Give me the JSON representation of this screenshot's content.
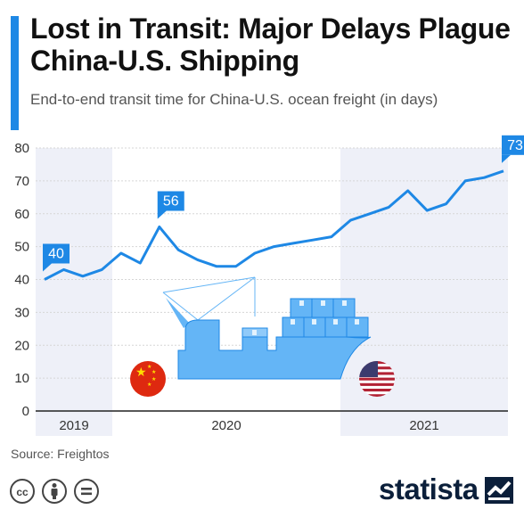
{
  "header": {
    "title": "Lost in Transit: Major Delays Plague China-U.S. Shipping",
    "subtitle": "End-to-end transit time for China-U.S. ocean freight (in days)"
  },
  "footer": {
    "source": "Source: Freightos",
    "logo": "statista"
  },
  "colors": {
    "accent": "#1e88e5",
    "line": "#1e88e5",
    "shade": "#eef0f8",
    "ship": "#64b5f6",
    "ship_dark": "#1e88e5",
    "china_flag": "#de2910",
    "us_red": "#b22234",
    "us_blue": "#3c3b6e"
  },
  "icons": [
    "cc-icon",
    "person-icon",
    "equals-icon",
    "cargo-ship-icon",
    "china-flag-icon",
    "us-flag-icon",
    "statista-logo-icon"
  ],
  "chart_data": {
    "type": "line",
    "title": "Lost in Transit: Major Delays Plague China-U.S. Shipping",
    "subtitle": "End-to-end transit time for China-U.S. ocean freight (in days)",
    "ylim": [
      0,
      80
    ],
    "yticks": [
      0,
      10,
      20,
      30,
      40,
      50,
      60,
      70,
      80
    ],
    "x_groups": [
      {
        "label": "2019",
        "shaded": true
      },
      {
        "label": "2020",
        "shaded": false
      },
      {
        "label": "2021",
        "shaded": true
      }
    ],
    "grid": true,
    "series": [
      {
        "values": [
          40,
          43,
          41,
          43,
          48,
          45,
          56,
          49,
          46,
          44,
          44,
          48,
          50,
          51,
          52,
          53,
          58,
          60,
          62,
          67,
          61,
          63,
          70,
          71,
          73
        ],
        "labels": [
          {
            "index": 0,
            "text": "40"
          },
          {
            "index": 6,
            "text": "56"
          },
          {
            "index": 24,
            "text": "73"
          }
        ]
      }
    ]
  }
}
